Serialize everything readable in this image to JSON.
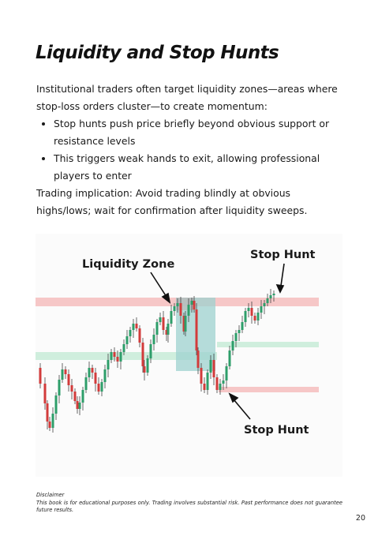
{
  "title": "Liquidity and Stop Hunts",
  "intro": "Institutional traders often target liquidity zones—areas where stop-loss orders cluster—to create momentum:",
  "bullets": [
    "Stop hunts push price briefly beyond obvious support or resistance levels",
    "This triggers weak hands to exit, allowing professional players to enter"
  ],
  "implication": "Trading implication: Avoid trading blindly at obvious highs/lows; wait for confirmation after liquidity sweeps.",
  "figure": {
    "label_liquidity_zone": "Liquidity Zone",
    "label_stop_hunt_top": "Stop Hunt",
    "label_stop_hunt_bottom": "Stop Hunt",
    "colors": {
      "bull_candle": "#2e9e6a",
      "bear_candle": "#d23b3b",
      "resistance_band": "#f6c7c7",
      "support_band": "#cfeedd",
      "zone_box": "#9dd2cf"
    }
  },
  "disclaimer": {
    "heading": "Disclaimer",
    "text": "This book is for educational purposes only. Trading involves substantial risk. Past performance does not guarantee future results."
  },
  "page_number": "20"
}
